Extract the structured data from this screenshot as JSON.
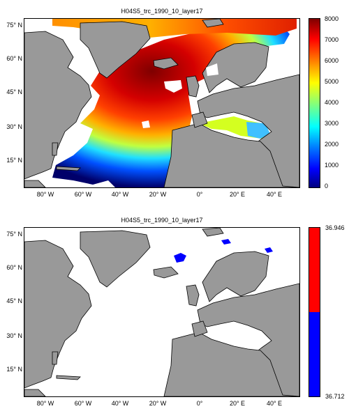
{
  "panels": [
    {
      "title": "H04S5_trc_1990_10_layer17",
      "lat_labels": [
        "75° N",
        "60° N",
        "45° N",
        "30° N",
        "15° N"
      ],
      "lon_labels": [
        "80° W",
        "60° W",
        "40° W",
        "20° W",
        "0°",
        "20° E",
        "40° E"
      ],
      "colorbar_ticks": [
        "8000",
        "7000",
        "6000",
        "5000",
        "4000",
        "3000",
        "2000",
        "1000",
        "0"
      ],
      "colormap": "jet"
    },
    {
      "title": "H04S5_trc_1990_10_layer17",
      "lat_labels": [
        "75° N",
        "60° N",
        "45° N",
        "30° N",
        "15° N"
      ],
      "lon_labels": [
        "80° W",
        "60° W",
        "40° W",
        "20° W",
        "0°",
        "20° E",
        "40° E"
      ],
      "colorbar_max": "36.946",
      "colorbar_min": "36.712",
      "colors": {
        "high": "#ff0000",
        "low": "#0000ff"
      }
    }
  ],
  "map": {
    "land_color": "#999999",
    "ocean_color": "#ffffff"
  }
}
